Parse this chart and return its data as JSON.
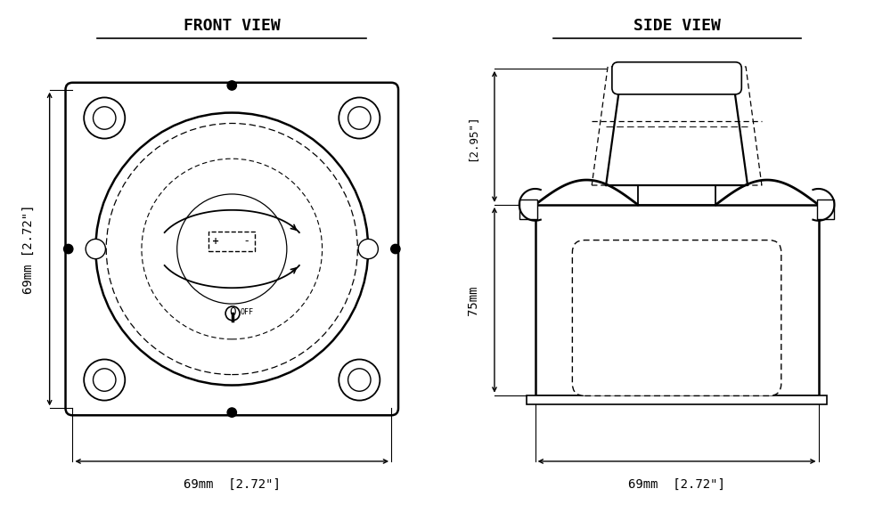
{
  "bg_color": "#ffffff",
  "line_color": "#000000",
  "title_front": "FRONT VIEW",
  "title_side": "SIDE VIEW",
  "dim_69mm_front_v": "69mm [2.72\"]",
  "dim_69mm_front_h": "69mm  [2.72\"]",
  "dim_75mm": "75mm",
  "dim_295": "[2.95\"]",
  "dim_69mm_side": "69mm  [2.72\"]",
  "font_title": 13,
  "font_dim": 10,
  "minus_sign": "-"
}
